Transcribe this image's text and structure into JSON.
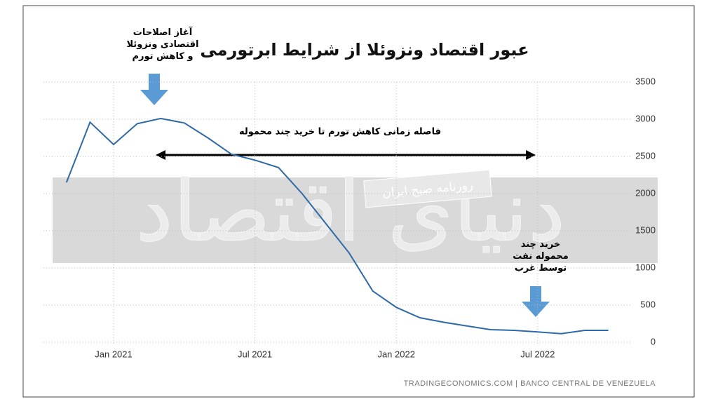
{
  "chart_data": {
    "type": "line",
    "title": "عبور اقتصاد ونزوئلا از شرایط ابرتورمی",
    "x": [
      "2020-11",
      "2020-12",
      "2021-01",
      "2021-02",
      "2021-03",
      "2021-04",
      "2021-05",
      "2021-06",
      "2021-07",
      "2021-08",
      "2021-09",
      "2021-10",
      "2021-11",
      "2021-12",
      "2022-01",
      "2022-02",
      "2022-03",
      "2022-04",
      "2022-05",
      "2022-06",
      "2022-07",
      "2022-08",
      "2022-09",
      "2022-10"
    ],
    "series": [
      {
        "color": "#2e6aa6",
        "values": [
          2150,
          2960,
          2660,
          2940,
          3010,
          2950,
          2750,
          2530,
          2450,
          2350,
          2000,
          1600,
          1200,
          690,
          470,
          330,
          270,
          220,
          170,
          160,
          140,
          115,
          160,
          160
        ]
      }
    ],
    "ylim": [
      0,
      3500
    ],
    "yticks": [
      0,
      500,
      1000,
      1500,
      2000,
      2500,
      3000,
      3500
    ],
    "xticks": [
      {
        "value": "2021-01",
        "label": "Jan 2021"
      },
      {
        "value": "2021-07",
        "label": "Jul 2021"
      },
      {
        "value": "2022-01",
        "label": "Jan 2022"
      },
      {
        "value": "2022-07",
        "label": "Jul 2022"
      }
    ],
    "grid": true,
    "annotations": {
      "start_reforms": [
        "آغاز اصلاحات",
        "اقتصادی ونزوئلا",
        "و کاهش تورم"
      ],
      "interval": "فاصله زمانی کاهش تورم تا خرید چند محموله",
      "oil_purchase": [
        "خرید چند",
        "محموله نفت",
        "توسط غرب"
      ],
      "watermark_main": "دنیای اقتصاد",
      "watermark_paper": "روزنامه صبح ایران"
    },
    "source": "TRADINGECONOMICS.COM | BANCO CENTRAL DE VENEZUELA"
  }
}
